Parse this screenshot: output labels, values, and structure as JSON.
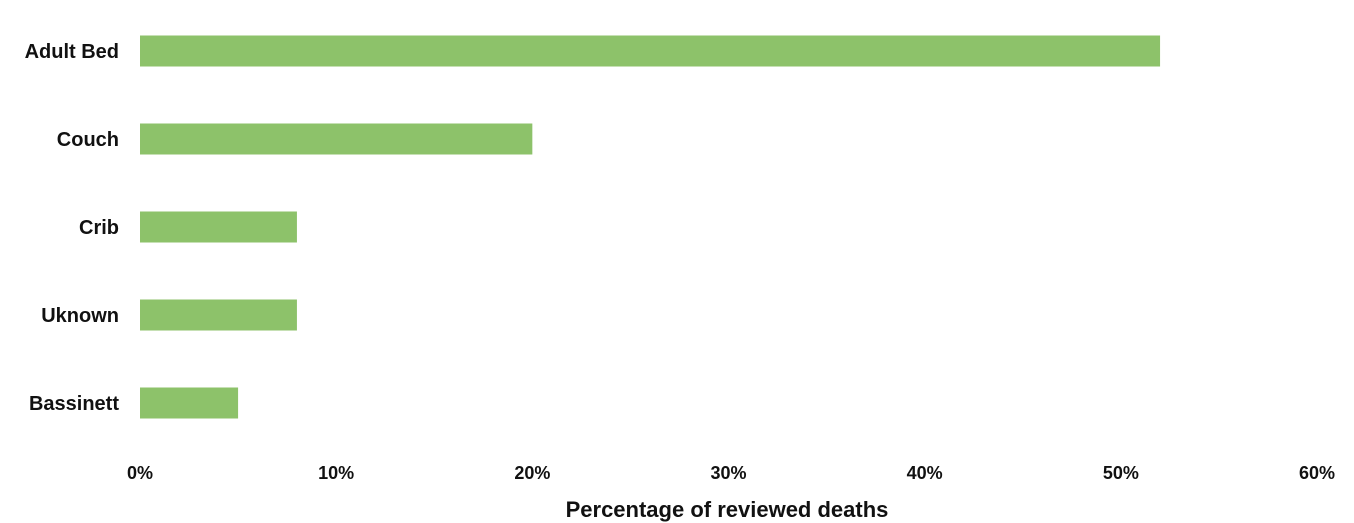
{
  "chart_data": {
    "type": "bar",
    "orientation": "horizontal",
    "categories": [
      "Adult Bed",
      "Couch",
      "Crib",
      "Uknown",
      "Bassinett"
    ],
    "values": [
      52,
      20,
      8,
      8,
      5
    ],
    "xlabel": "Percentage of reviewed deaths",
    "ylabel": "",
    "xlim": [
      0,
      60
    ],
    "xticks": [
      0,
      10,
      20,
      30,
      40,
      50,
      60
    ],
    "xtick_labels": [
      "0%",
      "10%",
      "20%",
      "30%",
      "40%",
      "50%",
      "60%"
    ],
    "grid": false,
    "legend": "none",
    "bar_color": "#8dc26a"
  }
}
